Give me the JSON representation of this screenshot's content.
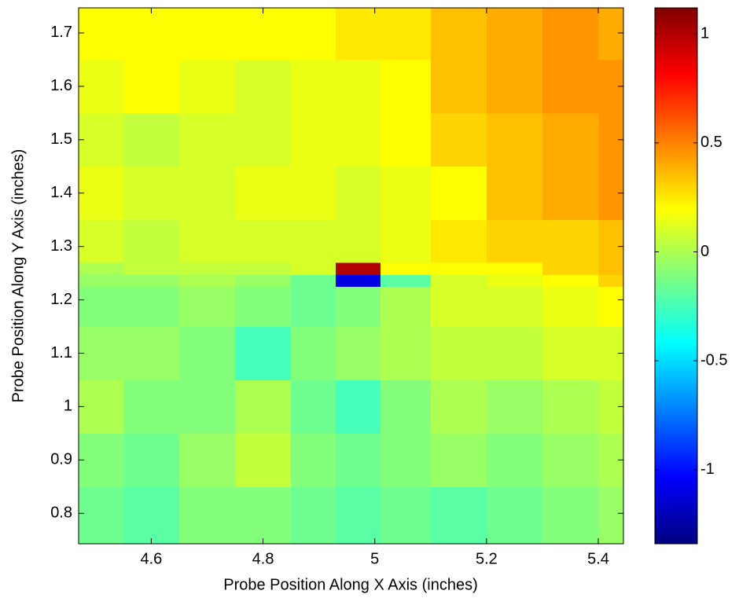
{
  "chart_data": {
    "type": "heatmap",
    "xlabel": "Probe Position Along X Axis (inches)",
    "ylabel": "Probe Position Along Y Axis (inches)",
    "colormap": "jet",
    "x_edges": [
      4.47,
      4.55,
      4.65,
      4.75,
      4.85,
      4.93,
      5.01,
      5.1,
      5.2,
      5.3,
      5.4,
      5.445
    ],
    "y_edges": [
      0.743,
      0.85,
      0.95,
      1.05,
      1.15,
      1.225,
      1.247,
      1.27,
      1.35,
      1.45,
      1.55,
      1.65,
      1.747
    ],
    "z": [
      [
        -0.15,
        -0.2,
        -0.1,
        -0.1,
        -0.15,
        -0.2,
        -0.15,
        -0.2,
        -0.15,
        -0.1,
        -0.05
      ],
      [
        -0.1,
        -0.15,
        -0.05,
        0.05,
        -0.1,
        -0.15,
        -0.1,
        -0.05,
        -0.1,
        -0.05,
        0
      ],
      [
        0,
        -0.1,
        -0.1,
        0,
        -0.15,
        -0.25,
        -0.1,
        0,
        -0.05,
        0,
        0.05
      ],
      [
        -0.05,
        -0.05,
        -0.1,
        -0.25,
        -0.1,
        -0.05,
        0,
        0.05,
        0.05,
        0.1,
        0.1
      ],
      [
        -0.1,
        -0.1,
        -0.05,
        -0.1,
        -0.15,
        -0.1,
        0,
        0.1,
        0.1,
        0.15,
        0.2
      ],
      [
        -0.05,
        -0.05,
        0,
        -0.05,
        -0.15,
        -1.1,
        -0.2,
        0.1,
        0.15,
        0.2,
        0.3
      ],
      [
        0,
        0.05,
        0.05,
        0.05,
        0.1,
        1.0,
        0.2,
        0.2,
        0.2,
        0.3,
        0.35
      ],
      [
        0.1,
        0.05,
        0.1,
        0.1,
        0.1,
        0.1,
        0.15,
        0.25,
        0.3,
        0.3,
        0.35
      ],
      [
        0.15,
        0.1,
        0.1,
        0.15,
        0.15,
        0.1,
        0.15,
        0.2,
        0.35,
        0.4,
        0.45
      ],
      [
        0.1,
        0.05,
        0.1,
        0.1,
        0.15,
        0.15,
        0.2,
        0.3,
        0.35,
        0.4,
        0.45
      ],
      [
        0.15,
        0.2,
        0.15,
        0.1,
        0.15,
        0.15,
        0.2,
        0.35,
        0.4,
        0.45,
        0.45
      ],
      [
        0.2,
        0.2,
        0.2,
        0.2,
        0.2,
        0.25,
        0.25,
        0.35,
        0.4,
        0.45,
        0.4
      ]
    ],
    "xlim": [
      4.47,
      5.445
    ],
    "xticks": [
      4.6,
      4.8,
      5,
      5.2,
      5.4
    ],
    "ylim": [
      0.743,
      1.747
    ],
    "yticks": [
      0.8,
      0.9,
      1,
      1.1,
      1.2,
      1.3,
      1.4,
      1.5,
      1.6,
      1.7
    ],
    "colorbar": {
      "clim": [
        -1.34,
        1.12
      ],
      "ticks": [
        -1,
        -0.5,
        0,
        0.5,
        1
      ]
    }
  }
}
